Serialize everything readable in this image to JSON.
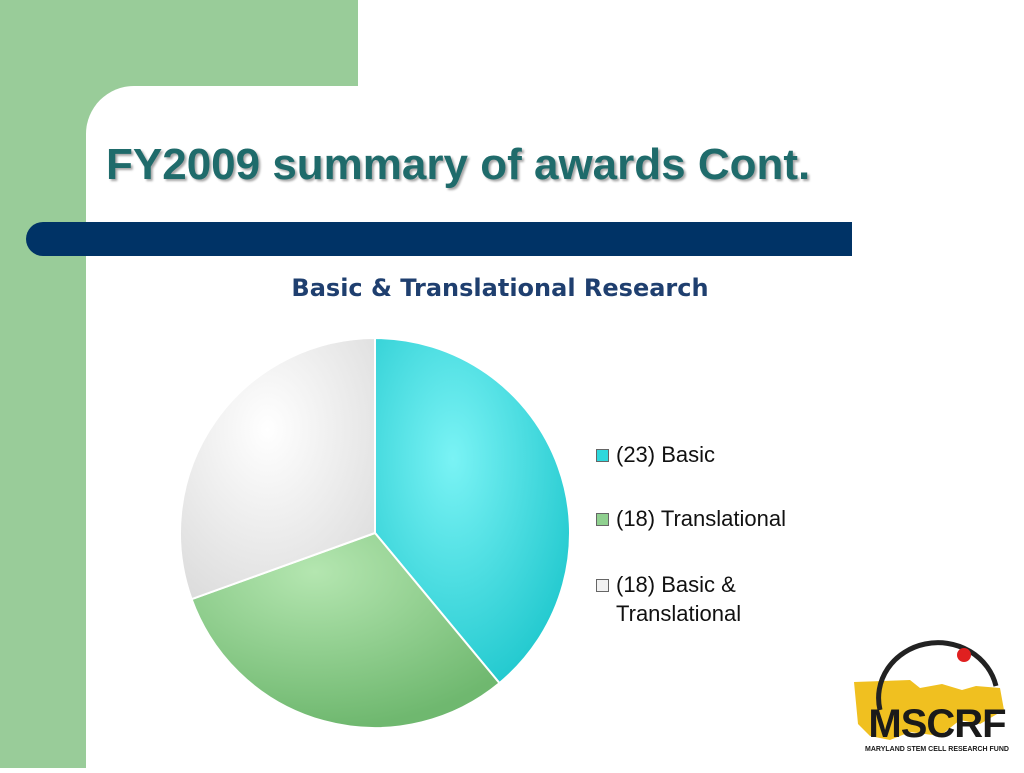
{
  "slide": {
    "title": "FY2009 summary of awards Cont."
  },
  "chart_data": {
    "type": "pie",
    "title": "Basic & Translational Research",
    "slices": [
      {
        "label": "(23) Basic",
        "value": 23,
        "color": "#2ed8dc"
      },
      {
        "label": "(18) Translational",
        "value": 18,
        "color": "#8fd08f"
      },
      {
        "label": "(18) Basic & Translational",
        "value": 18,
        "color": "#f2f2f2"
      }
    ],
    "legend_position": "right"
  },
  "logo": {
    "name": "MSCRF",
    "subtitle": "MARYLAND STEM CELL RESEARCH FUND",
    "colors": {
      "map": "#f0c020",
      "ring": "#222222",
      "dot": "#e02020"
    }
  },
  "colors": {
    "sidebar": "#99cc99",
    "title_bar": "#003366",
    "title_text": "#1f6b6b",
    "chart_title": "#1f3f6f"
  }
}
